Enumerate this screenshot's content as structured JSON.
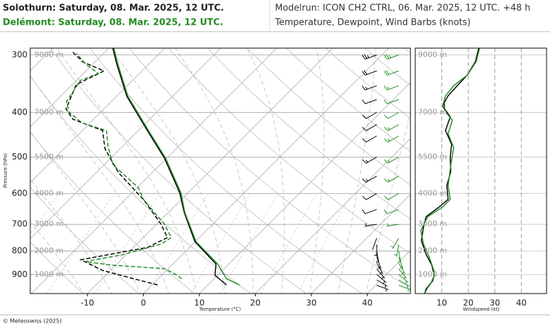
{
  "header": {
    "station1": "Solothurn: Saturday, 08. Mar. 2025, 12 UTC.",
    "station2": "Delémont: Saturday, 08. Mar. 2025, 12 UTC.",
    "modelrun": "Modelrun: ICON CH2 CTRL, 06. Mar. 2025, 12 UTC. +48 h",
    "subtitle": "Temperature, Dewpoint, Wind Barbs (knots)"
  },
  "footer": "© Meteoswiss (2025)",
  "chart_data": [
    {
      "type": "skewt",
      "x_label": "Temperature (°C)",
      "y_label": "Pressure (hPa)",
      "xlim": [
        -20.2,
        47.7
      ],
      "xticks": [
        -10,
        0,
        10,
        20,
        30,
        40
      ],
      "ylim": [
        990,
        290
      ],
      "yticks": [
        300,
        400,
        500,
        600,
        700,
        800,
        900
      ],
      "log_y": true,
      "height_labels": [
        {
          "value": 300,
          "label": "9000 m"
        },
        {
          "value": 400,
          "label": "7000 m"
        },
        {
          "value": 500,
          "label": "5500 m"
        },
        {
          "value": 600,
          "label": "4000 m"
        },
        {
          "value": 700,
          "label": "3000 m"
        },
        {
          "value": 800,
          "label": "2000 m"
        },
        {
          "value": 900,
          "label": "1000 m"
        }
      ],
      "series": [
        {
          "color": "#000000",
          "dashed": false,
          "pressure": [
            948,
            903,
            854,
            763,
            661,
            598,
            503,
            438,
            369,
            315,
            290
          ],
          "values": [
            13.3,
            9.5,
            7.7,
            -0.1,
            -7.1,
            -11.5,
            -20.4,
            -28.4,
            -38.2,
            -45.6,
            -49.3
          ]
        },
        {
          "color": "#228b22",
          "dashed": false,
          "pressure": [
            948,
            919,
            854,
            763,
            661,
            598,
            503,
            438,
            369,
            315,
            290
          ],
          "values": [
            15.6,
            12.2,
            8.0,
            0.1,
            -7.0,
            -11.3,
            -20.2,
            -28.2,
            -38.0,
            -45.4,
            -49.1
          ]
        },
        {
          "color": "#000000",
          "dashed": true,
          "pressure": [
            948,
            919,
            882,
            836,
            786,
            748,
            699,
            619,
            541,
            480,
            438,
            414,
            393,
            348,
            325,
            311,
            296
          ],
          "values": [
            1.0,
            -4.4,
            -11.4,
            -17.2,
            -7.5,
            -5.7,
            -9.3,
            -16.7,
            -26.0,
            -32.7,
            -36.4,
            -43.7,
            -46.8,
            -49.3,
            -46.8,
            -52.1,
            -55.7
          ]
        },
        {
          "color": "#228b22",
          "dashed": true,
          "pressure": [
            919,
            897,
            874,
            859,
            844,
            815,
            773,
            748,
            699,
            619,
            583,
            520,
            473,
            438,
            422,
            400,
            379,
            341,
            329,
            315,
            298
          ],
          "values": [
            4.2,
            2.1,
            -0.7,
            -10.6,
            -16.1,
            -10.6,
            -5.7,
            -5.0,
            -8.7,
            -16.7,
            -19.8,
            -28.4,
            -32.7,
            -35.7,
            -41.3,
            -45.6,
            -48.0,
            -49.3,
            -47.4,
            -51.1,
            -54.8
          ]
        }
      ],
      "wind": [
        {
          "color": "#000000",
          "pressure": [
            300,
            325,
            350,
            375,
            400,
            425,
            450,
            500,
            550,
            600,
            650,
            700,
            750,
            775,
            800,
            825,
            850,
            875,
            900,
            925,
            950
          ],
          "speed": [
            23,
            21,
            16,
            12,
            11,
            12,
            12,
            13,
            13,
            12,
            9,
            3,
            2,
            3,
            4,
            5,
            6,
            7,
            7,
            6,
            5
          ],
          "direction": [
            250,
            250,
            250,
            250,
            240,
            240,
            240,
            240,
            240,
            240,
            250,
            260,
            200,
            180,
            170,
            160,
            150,
            140,
            130,
            120,
            110
          ]
        },
        {
          "color": "#228b22",
          "pressure": [
            300,
            325,
            350,
            375,
            400,
            425,
            450,
            500,
            550,
            600,
            650,
            700,
            750,
            775,
            800,
            825,
            850,
            875,
            900,
            925,
            950
          ],
          "speed": [
            24,
            21,
            15,
            12,
            11,
            13,
            13,
            13,
            13,
            12,
            10,
            4,
            3,
            4,
            5,
            6,
            6,
            7,
            7,
            6,
            5
          ],
          "direction": [
            250,
            250,
            250,
            250,
            240,
            240,
            240,
            240,
            240,
            240,
            250,
            260,
            210,
            190,
            170,
            160,
            150,
            140,
            130,
            120,
            110
          ]
        }
      ]
    },
    {
      "type": "profile",
      "x_label": "Windspeed (kt)",
      "xlim": [
        0,
        49.5
      ],
      "xticks": [
        10,
        20,
        30,
        40
      ],
      "ylim": [
        990,
        290
      ],
      "log_y": true,
      "height_labels": [
        {
          "value": 300,
          "label": "9000 m"
        },
        {
          "value": 400,
          "label": "7000 m"
        },
        {
          "value": 500,
          "label": "5500 m"
        },
        {
          "value": 600,
          "label": "4000 m"
        },
        {
          "value": 700,
          "label": "3000 m"
        },
        {
          "value": 800,
          "label": "2000 m"
        },
        {
          "value": 900,
          "label": "1000 m"
        }
      ],
      "series": [
        {
          "color": "#000000",
          "pressure": [
            289,
            310,
            332,
            350,
            368,
            381,
            392,
            409,
            438,
            469,
            502,
            538,
            577,
            618,
            640,
            674,
            709,
            760,
            814,
            858,
            903,
            935,
            967,
            995
          ],
          "values": [
            24.0,
            22.7,
            19.6,
            15.8,
            12.4,
            10.9,
            10.9,
            13.2,
            11.4,
            13.7,
            13.2,
            13.4,
            11.9,
            12.4,
            9.3,
            4.1,
            3.1,
            2.3,
            4.1,
            6.2,
            7.2,
            6.2,
            4.1,
            3.4
          ]
        },
        {
          "color": "#228b22",
          "pressure": [
            289,
            310,
            332,
            350,
            368,
            388,
            402,
            416,
            445,
            477,
            520,
            577,
            618,
            640,
            674,
            722,
            773,
            829,
            888,
            928,
            961,
            988
          ],
          "values": [
            24.3,
            23.0,
            19.6,
            14.5,
            11.4,
            10.3,
            11.9,
            14.0,
            12.4,
            14.5,
            13.4,
            12.4,
            13.2,
            10.6,
            4.7,
            2.1,
            3.1,
            5.4,
            7.2,
            6.7,
            4.7,
            3.6
          ]
        }
      ]
    }
  ]
}
